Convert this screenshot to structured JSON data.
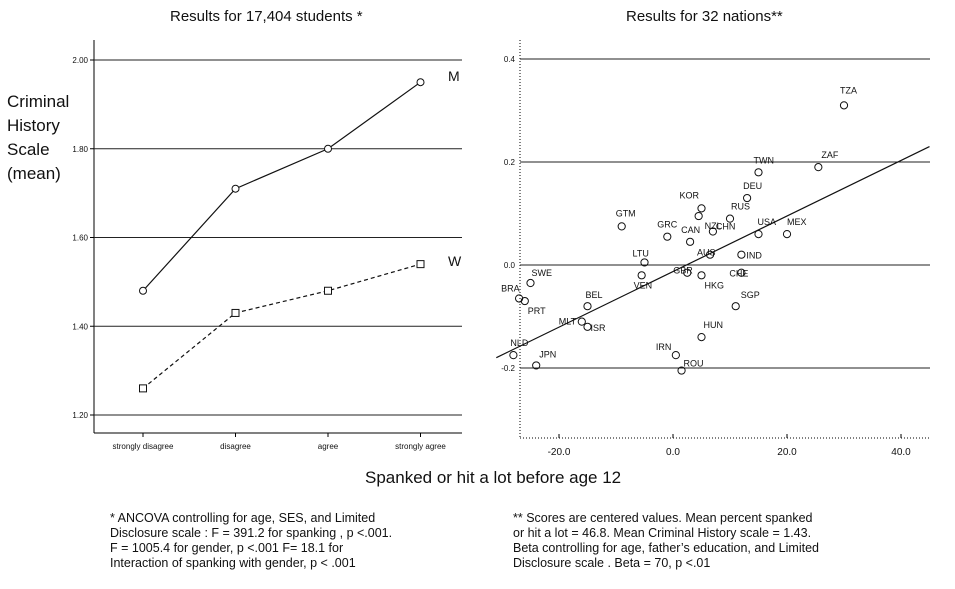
{
  "left_title": "Results for 17,404 students *",
  "right_title": "Results for 32 nations**",
  "y_label_lines": [
    "Criminal",
    "History",
    "Scale",
    "(mean)"
  ],
  "x_label": "Spanked or hit a lot before age 12",
  "note_left": [
    "* ANCOVA controlling for age, SES, and Limited",
    "Disclosure scale :  F = 391.2 for spanking ,  p <.001.",
    "F = 1005.4 for gender, p <.001  F= 18.1 for",
    "Interaction of spanking with gender,  p < .001"
  ],
  "note_right": [
    "** Scores are centered values. Mean percent spanked",
    "or hit a lot =  46.8.   Mean Criminal History scale = 1.43.",
    "Beta controlling  for age, father’s education, and  Limited",
    "Disclosure scale .  Beta =   70, p <.01"
  ],
  "chart_data": [
    {
      "type": "line",
      "categories": [
        "strongly disagree",
        "disagree",
        "agree",
        "strongly agree"
      ],
      "series": [
        {
          "name": "M",
          "values": [
            1.48,
            1.71,
            1.8,
            1.95
          ],
          "style": "solid",
          "marker": "circle"
        },
        {
          "name": "W",
          "values": [
            1.26,
            1.43,
            1.48,
            1.54
          ],
          "style": "dashed",
          "marker": "square"
        }
      ],
      "ylim": [
        1.15,
        2.03
      ],
      "yticks": [
        1.2,
        1.4,
        1.6,
        1.8,
        2.0
      ],
      "ytick_labels": [
        "1.20",
        "1.40",
        "1.60",
        "1.80",
        "2.00"
      ],
      "grid": "horizontal"
    },
    {
      "type": "scatter",
      "xlim": [
        -31,
        45
      ],
      "ylim": [
        -0.34,
        0.43
      ],
      "xticks": [
        -20,
        0,
        20,
        40
      ],
      "xtick_labels": [
        "-20.0",
        "0.0",
        "20.0",
        "40.0"
      ],
      "yticks": [
        -0.2,
        0.0,
        0.2,
        0.4
      ],
      "ytick_labels": [
        "-0.2",
        "0.0",
        "0.2",
        "0.4"
      ],
      "grid": "horizontal",
      "points": [
        {
          "label": "TZA",
          "x": 30.0,
          "y": 0.31
        },
        {
          "label": "ZAF",
          "x": 25.5,
          "y": 0.19
        },
        {
          "label": "TWN",
          "x": 15.0,
          "y": 0.18
        },
        {
          "label": "DEU",
          "x": 13.0,
          "y": 0.13
        },
        {
          "label": "KOR",
          "x": 5.0,
          "y": 0.11
        },
        {
          "label": "RUS",
          "x": 10.0,
          "y": 0.09
        },
        {
          "label": "USA",
          "x": 15.0,
          "y": 0.06
        },
        {
          "label": "MEX",
          "x": 20.0,
          "y": 0.06
        },
        {
          "label": "GTM",
          "x": -9.0,
          "y": 0.075
        },
        {
          "label": "GRC",
          "x": -1.0,
          "y": 0.055
        },
        {
          "label": "CAN",
          "x": 3.0,
          "y": 0.045
        },
        {
          "label": "CHN",
          "x": 7.0,
          "y": 0.065
        },
        {
          "label": "NZL",
          "x": 4.5,
          "y": 0.095
        },
        {
          "label": "AUS",
          "x": 6.5,
          "y": 0.02
        },
        {
          "label": "IND",
          "x": 12.0,
          "y": 0.02
        },
        {
          "label": "LTU",
          "x": -5.0,
          "y": 0.005
        },
        {
          "label": "GBR",
          "x": 2.5,
          "y": -0.015
        },
        {
          "label": "CHE",
          "x": 12.0,
          "y": -0.015
        },
        {
          "label": "VEN",
          "x": -5.5,
          "y": -0.02
        },
        {
          "label": "HKG",
          "x": 5.0,
          "y": -0.02
        },
        {
          "label": "SWE",
          "x": -25.0,
          "y": -0.035
        },
        {
          "label": "BRA",
          "x": -27.0,
          "y": -0.065
        },
        {
          "label": "PRT",
          "x": -26.0,
          "y": -0.07
        },
        {
          "label": "SGP",
          "x": 11.0,
          "y": -0.08
        },
        {
          "label": "BEL",
          "x": -15.0,
          "y": -0.08
        },
        {
          "label": "MLT",
          "x": -16.0,
          "y": -0.11
        },
        {
          "label": "ISR",
          "x": -15.0,
          "y": -0.12
        },
        {
          "label": "HUN",
          "x": 5.0,
          "y": -0.14
        },
        {
          "label": "NLD",
          "x": -28.0,
          "y": -0.175
        },
        {
          "label": "JPN",
          "x": -24.0,
          "y": -0.195
        },
        {
          "label": "IRN",
          "x": 0.5,
          "y": -0.175
        },
        {
          "label": "ROU",
          "x": 1.5,
          "y": -0.205
        }
      ],
      "fit_line": {
        "x": [
          -31,
          45
        ],
        "y": [
          -0.18,
          0.23
        ]
      }
    }
  ]
}
